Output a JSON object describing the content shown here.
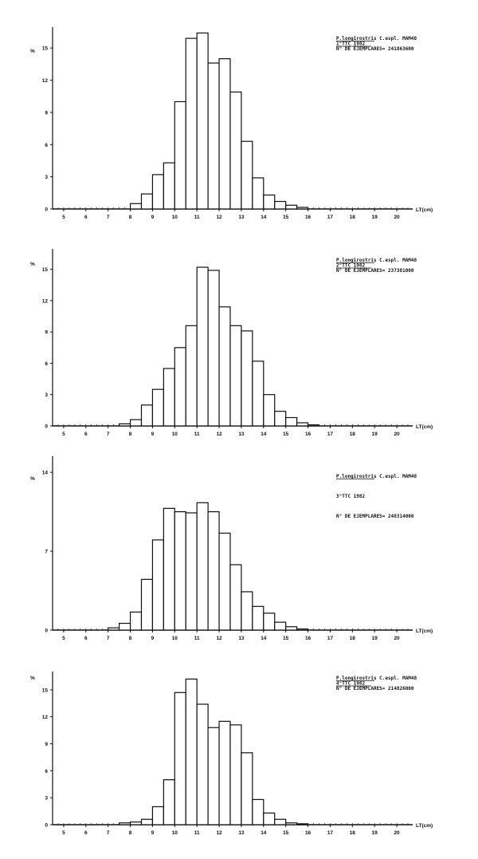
{
  "chart_data": [
    {
      "type": "bar",
      "legend": {
        "line1": "P.longirostris C.espl. MAM48",
        "line2": "1°TTC 1982",
        "line3": "N° DE EJEMPLARES= 241863600"
      },
      "ylabel": "%",
      "xlabel": "LT(cm)",
      "ylim": [
        0,
        16.5
      ],
      "yticks": [
        0,
        3,
        6,
        9,
        12,
        15
      ],
      "xlim": [
        4.5,
        20.5
      ],
      "xticks": [
        5,
        6,
        7,
        8,
        9,
        10,
        11,
        12,
        13,
        14,
        15,
        16,
        17,
        18,
        19,
        20
      ],
      "bin_width": 0.5,
      "bins_start": [
        8.0,
        8.5,
        9.0,
        9.5,
        10.0,
        10.5,
        11.0,
        11.5,
        12.0,
        12.5,
        13.0,
        13.5,
        14.0,
        14.5,
        15.0,
        15.5
      ],
      "values": [
        0.5,
        1.4,
        3.2,
        4.3,
        10.0,
        15.9,
        16.4,
        13.6,
        14.0,
        10.9,
        6.3,
        2.9,
        1.3,
        0.7,
        0.35,
        0.15
      ]
    },
    {
      "type": "bar",
      "legend": {
        "line1": "P.longirostris C.espl. MAM48",
        "line2": "2°TTC 1982",
        "line3": "N° DE EJEMPLARES= 237381000"
      },
      "ylabel": "%",
      "xlabel": "LT(cm)",
      "ylim": [
        0,
        16.5
      ],
      "yticks": [
        0,
        3,
        6,
        9,
        12,
        15
      ],
      "xlim": [
        4.5,
        20.5
      ],
      "xticks": [
        5,
        6,
        7,
        8,
        9,
        10,
        11,
        12,
        13,
        14,
        15,
        16,
        17,
        18,
        19,
        20
      ],
      "bin_width": 0.5,
      "bins_start": [
        7.5,
        8.0,
        8.5,
        9.0,
        9.5,
        10.0,
        10.5,
        11.0,
        11.5,
        12.0,
        12.5,
        13.0,
        13.5,
        14.0,
        14.5,
        15.0,
        15.5,
        16.0
      ],
      "values": [
        0.2,
        0.6,
        2.0,
        3.5,
        5.5,
        7.5,
        9.6,
        15.2,
        14.9,
        11.4,
        9.6,
        9.1,
        6.2,
        3.0,
        1.4,
        0.8,
        0.3,
        0.1
      ]
    },
    {
      "type": "bar",
      "legend": {
        "line1": "P.longirostris C.espl. MAM48",
        "line2": "3°TTC 1982",
        "line3": "N° DE EJEMPLARES= 248314000"
      },
      "ylabel": "%",
      "xlabel": "LT(cm)",
      "ylim": [
        0,
        15
      ],
      "yticks": [
        0,
        7,
        14
      ],
      "xlim": [
        4.5,
        20.5
      ],
      "xticks": [
        5,
        6,
        7,
        8,
        9,
        10,
        11,
        12,
        13,
        14,
        15,
        16,
        17,
        18,
        19,
        20
      ],
      "bin_width": 0.5,
      "bins_start": [
        7.0,
        7.5,
        8.0,
        8.5,
        9.0,
        9.5,
        10.0,
        10.5,
        11.0,
        11.5,
        12.0,
        12.5,
        13.0,
        13.5,
        14.0,
        14.5,
        15.0,
        15.5
      ],
      "values": [
        0.2,
        0.6,
        1.6,
        4.5,
        8.0,
        10.8,
        10.5,
        10.4,
        11.3,
        10.5,
        8.6,
        5.8,
        3.4,
        2.1,
        1.5,
        0.7,
        0.3,
        0.1
      ]
    },
    {
      "type": "bar",
      "legend": {
        "line1": "P.longirostris C.espl. MAM48",
        "line2": "4°TTC 1982",
        "line3": "N° DE EJEMPLARES= 214826000"
      },
      "ylabel": "%",
      "xlabel": "LT(cm)",
      "ylim": [
        0,
        16.5
      ],
      "yticks": [
        0,
        3,
        6,
        9,
        12,
        15
      ],
      "xlim": [
        4.5,
        20.5
      ],
      "xticks": [
        5,
        6,
        7,
        8,
        9,
        10,
        11,
        12,
        13,
        14,
        15,
        16,
        17,
        18,
        19,
        20
      ],
      "bin_width": 0.5,
      "bins_start": [
        7.5,
        8.0,
        8.5,
        9.0,
        9.5,
        10.0,
        10.5,
        11.0,
        11.5,
        12.0,
        12.5,
        13.0,
        13.5,
        14.0,
        14.5,
        15.0,
        15.5
      ],
      "values": [
        0.2,
        0.3,
        0.6,
        2.0,
        5.0,
        14.7,
        16.2,
        13.4,
        10.8,
        11.5,
        11.1,
        8.0,
        2.8,
        1.3,
        0.6,
        0.2,
        0.1
      ]
    }
  ]
}
